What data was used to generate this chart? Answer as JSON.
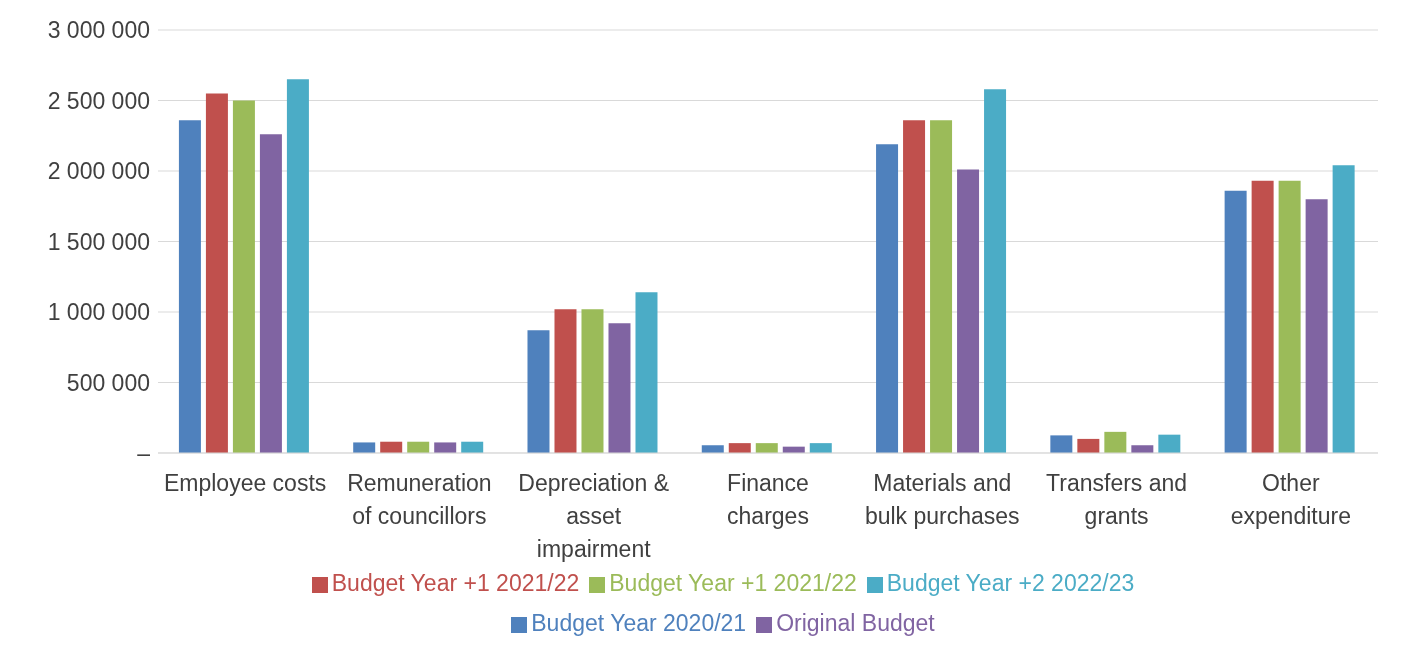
{
  "chart_data": {
    "type": "bar",
    "categories": [
      "Employee costs",
      "Remuneration of councillors",
      "Depreciation & asset impairment",
      "Finance charges",
      "Materials and bulk purchases",
      "Transfers and grants",
      "Other expenditure"
    ],
    "series": [
      {
        "name": "Budget Year 2020/21",
        "color": "#4f81bd",
        "values": [
          2360000,
          75000,
          870000,
          55000,
          2190000,
          125000,
          1860000
        ]
      },
      {
        "name": "Budget Year +1 2021/22",
        "color": "#c0504d",
        "values": [
          2550000,
          80000,
          1020000,
          70000,
          2360000,
          100000,
          1930000
        ]
      },
      {
        "name": "Budget Year +1 2021/22",
        "color": "#9bbb59",
        "values": [
          2500000,
          80000,
          1020000,
          70000,
          2360000,
          150000,
          1930000
        ]
      },
      {
        "name": "Original Budget",
        "color": "#8064a2",
        "values": [
          2260000,
          75000,
          920000,
          45000,
          2010000,
          55000,
          1800000
        ]
      },
      {
        "name": "Budget Year +2 2022/23",
        "color": "#4bacc6",
        "values": [
          2650000,
          80000,
          1140000,
          70000,
          2580000,
          130000,
          2040000
        ]
      }
    ],
    "ylim": [
      0,
      3000000
    ],
    "yticks": [
      {
        "value": 0,
        "label": "–"
      },
      {
        "value": 500000,
        "label": "500 000"
      },
      {
        "value": 1000000,
        "label": "1 000 000"
      },
      {
        "value": 1500000,
        "label": "1 500 000"
      },
      {
        "value": 2000000,
        "label": "2 000 000"
      },
      {
        "value": 2500000,
        "label": "2 500 000"
      },
      {
        "value": 3000000,
        "label": "3 000 000"
      }
    ],
    "grid": "y",
    "legend": "bottom"
  }
}
